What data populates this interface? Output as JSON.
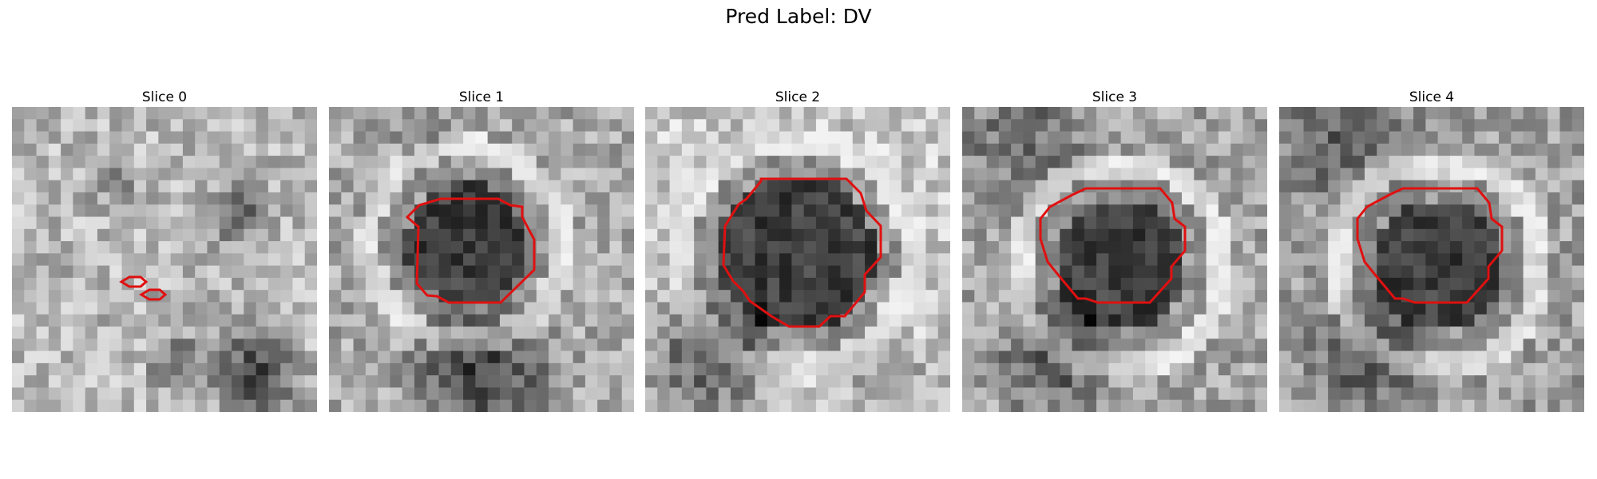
{
  "figure": {
    "title": "Pred Label: DV"
  },
  "slices": [
    {
      "title": "Slice 0",
      "contour_count": 2
    },
    {
      "title": "Slice 1",
      "contour_count": 1
    },
    {
      "title": "Slice 2",
      "contour_count": 1
    },
    {
      "title": "Slice 3",
      "contour_count": 1
    },
    {
      "title": "Slice 4",
      "contour_count": 1
    }
  ],
  "colors": {
    "contour": "#e01010",
    "background": "#ffffff"
  }
}
